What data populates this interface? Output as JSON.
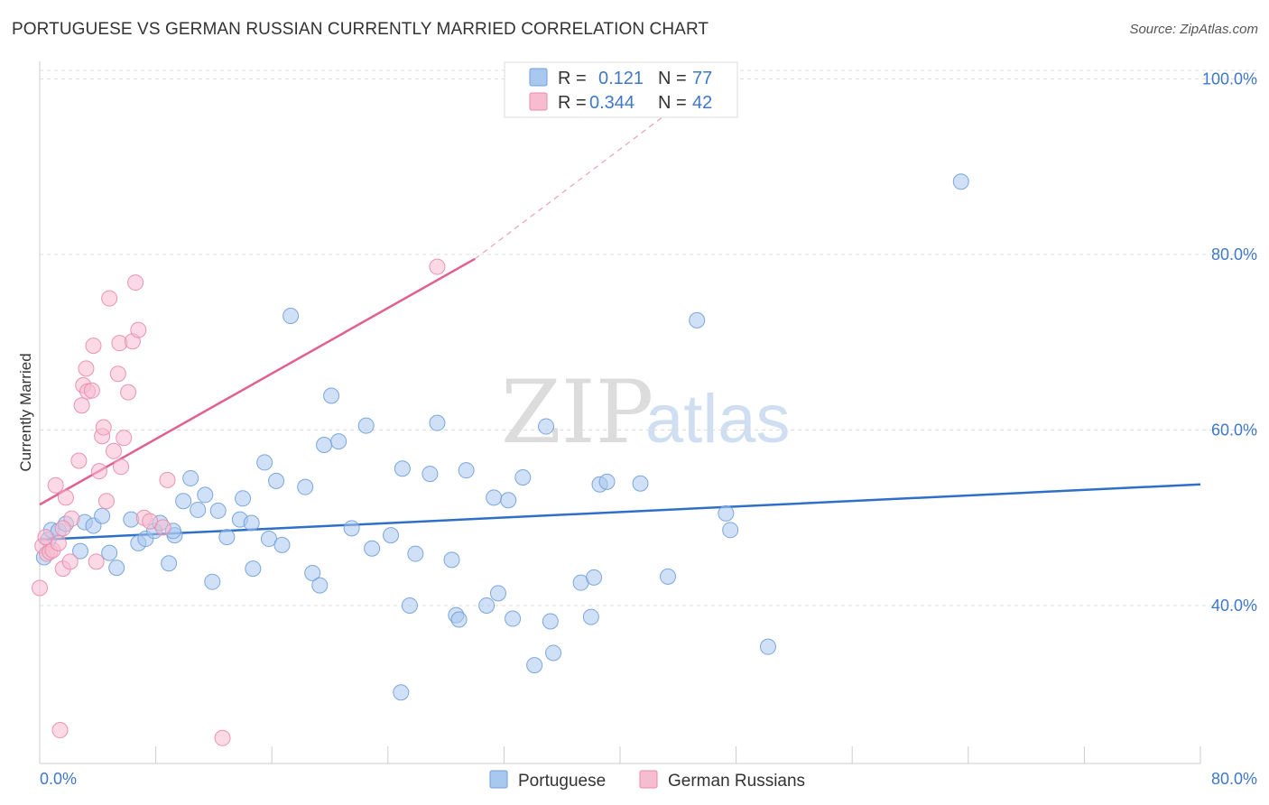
{
  "title": "PORTUGUESE VS GERMAN RUSSIAN CURRENTLY MARRIED CORRELATION CHART",
  "source": "Source: ZipAtlas.com",
  "watermark": {
    "zip": "ZIP",
    "atlas": "atlas"
  },
  "legend": {
    "rows": [
      {
        "r_label": "R =",
        "r_value": "0.121",
        "n_label": "N =",
        "n_value": "77",
        "color": "#a9c8f0",
        "stroke": "#6f9fd8"
      },
      {
        "r_label": "R =",
        "r_value": "0.344",
        "n_label": "N =",
        "n_value": "42",
        "color": "#f7bcd0",
        "stroke": "#e88aac"
      }
    ]
  },
  "bottom_legend": [
    {
      "label": "Portuguese",
      "color": "#a9c8f0",
      "stroke": "#6f9fd8"
    },
    {
      "label": "German Russians",
      "color": "#f7bcd0",
      "stroke": "#e88aac"
    }
  ],
  "chart_data": {
    "type": "scatter",
    "ylabel": "Currently Married",
    "xlabel": "",
    "xlim": [
      0,
      80
    ],
    "ylim": [
      22,
      102
    ],
    "x_tick_labels": [
      "0.0%",
      "80.0%"
    ],
    "y_ticks": [
      40,
      60,
      80,
      100
    ],
    "y_tick_labels": [
      "40.0%",
      "60.0%",
      "80.0%",
      "100.0%"
    ],
    "grid": "horizontal dashed",
    "legend_position": "top-center",
    "series": [
      {
        "name": "Portuguese",
        "color": "#a9c8f0",
        "stroke": "#6f9fd8",
        "trend": {
          "x": [
            0,
            80
          ],
          "y": [
            47.5,
            53.8
          ],
          "color": "#2f6fc8"
        },
        "points": [
          [
            0.3,
            45.5
          ],
          [
            0.6,
            47.5
          ],
          [
            0.8,
            48.6
          ],
          [
            1.3,
            48.5
          ],
          [
            1.8,
            49.3
          ],
          [
            2.8,
            46.2
          ],
          [
            3.1,
            49.5
          ],
          [
            3.7,
            49.1
          ],
          [
            4.3,
            50.2
          ],
          [
            4.8,
            46.0
          ],
          [
            5.3,
            44.3
          ],
          [
            6.3,
            49.8
          ],
          [
            6.8,
            47.1
          ],
          [
            7.3,
            47.6
          ],
          [
            7.9,
            48.5
          ],
          [
            8.3,
            49.4
          ],
          [
            8.9,
            44.8
          ],
          [
            9.3,
            48.0
          ],
          [
            9.9,
            51.9
          ],
          [
            10.4,
            54.5
          ],
          [
            10.9,
            50.9
          ],
          [
            11.4,
            52.6
          ],
          [
            11.9,
            42.7
          ],
          [
            12.3,
            50.8
          ],
          [
            12.9,
            47.8
          ],
          [
            13.8,
            49.8
          ],
          [
            14.0,
            52.2
          ],
          [
            14.6,
            49.4
          ],
          [
            14.7,
            44.2
          ],
          [
            15.5,
            56.3
          ],
          [
            15.8,
            47.6
          ],
          [
            16.3,
            54.2
          ],
          [
            16.7,
            46.9
          ],
          [
            17.3,
            73.0
          ],
          [
            18.3,
            53.5
          ],
          [
            18.8,
            43.7
          ],
          [
            19.3,
            42.3
          ],
          [
            19.6,
            58.3
          ],
          [
            20.1,
            63.9
          ],
          [
            20.6,
            58.7
          ],
          [
            21.5,
            48.8
          ],
          [
            22.5,
            60.5
          ],
          [
            22.9,
            46.5
          ],
          [
            24.2,
            48.0
          ],
          [
            25.0,
            55.6
          ],
          [
            25.5,
            40.0
          ],
          [
            25.9,
            45.9
          ],
          [
            26.9,
            55.0
          ],
          [
            27.4,
            60.8
          ],
          [
            28.4,
            45.2
          ],
          [
            28.7,
            38.9
          ],
          [
            28.9,
            38.4
          ],
          [
            29.4,
            55.4
          ],
          [
            30.8,
            40.0
          ],
          [
            31.3,
            52.3
          ],
          [
            31.6,
            41.4
          ],
          [
            32.3,
            52.0
          ],
          [
            32.6,
            38.5
          ],
          [
            33.3,
            54.6
          ],
          [
            34.1,
            33.2
          ],
          [
            34.9,
            60.4
          ],
          [
            35.2,
            38.2
          ],
          [
            35.4,
            34.6
          ],
          [
            37.3,
            42.6
          ],
          [
            38.0,
            38.7
          ],
          [
            38.2,
            43.2
          ],
          [
            38.6,
            53.8
          ],
          [
            39.1,
            54.1
          ],
          [
            41.4,
            53.9
          ],
          [
            43.3,
            43.3
          ],
          [
            45.3,
            72.5
          ],
          [
            47.3,
            50.5
          ],
          [
            47.6,
            48.6
          ],
          [
            50.2,
            35.3
          ],
          [
            63.5,
            88.3
          ],
          [
            24.9,
            30.1
          ],
          [
            9.2,
            48.5
          ]
        ]
      },
      {
        "name": "German Russians",
        "color": "#f7bcd0",
        "stroke": "#e88aac",
        "trend": {
          "x": [
            0,
            30
          ],
          "y": [
            51.5,
            79.5
          ],
          "dash_to": [
            48,
            102
          ],
          "color": "#e06090"
        },
        "points": [
          [
            0.0,
            42.0
          ],
          [
            0.2,
            46.8
          ],
          [
            0.4,
            47.8
          ],
          [
            0.5,
            45.9
          ],
          [
            0.7,
            46.1
          ],
          [
            0.9,
            46.3
          ],
          [
            1.1,
            53.7
          ],
          [
            1.3,
            47.1
          ],
          [
            1.6,
            44.2
          ],
          [
            1.8,
            52.3
          ],
          [
            2.1,
            45.0
          ],
          [
            2.2,
            49.9
          ],
          [
            2.7,
            56.5
          ],
          [
            2.9,
            62.8
          ],
          [
            3.0,
            65.1
          ],
          [
            3.2,
            67.0
          ],
          [
            3.3,
            64.4
          ],
          [
            3.6,
            64.5
          ],
          [
            3.7,
            69.6
          ],
          [
            3.9,
            45.0
          ],
          [
            4.1,
            55.3
          ],
          [
            4.3,
            59.3
          ],
          [
            4.4,
            60.3
          ],
          [
            4.6,
            51.9
          ],
          [
            4.8,
            75.0
          ],
          [
            5.1,
            57.6
          ],
          [
            5.4,
            66.4
          ],
          [
            5.5,
            69.9
          ],
          [
            5.6,
            55.8
          ],
          [
            5.8,
            59.1
          ],
          [
            6.1,
            64.3
          ],
          [
            6.4,
            70.1
          ],
          [
            6.6,
            76.8
          ],
          [
            6.8,
            71.4
          ],
          [
            7.2,
            50.0
          ],
          [
            7.6,
            49.6
          ],
          [
            1.4,
            25.8
          ],
          [
            8.5,
            48.9
          ],
          [
            8.8,
            54.3
          ],
          [
            12.6,
            24.9
          ],
          [
            27.4,
            78.6
          ],
          [
            1.6,
            48.8
          ]
        ]
      }
    ]
  }
}
